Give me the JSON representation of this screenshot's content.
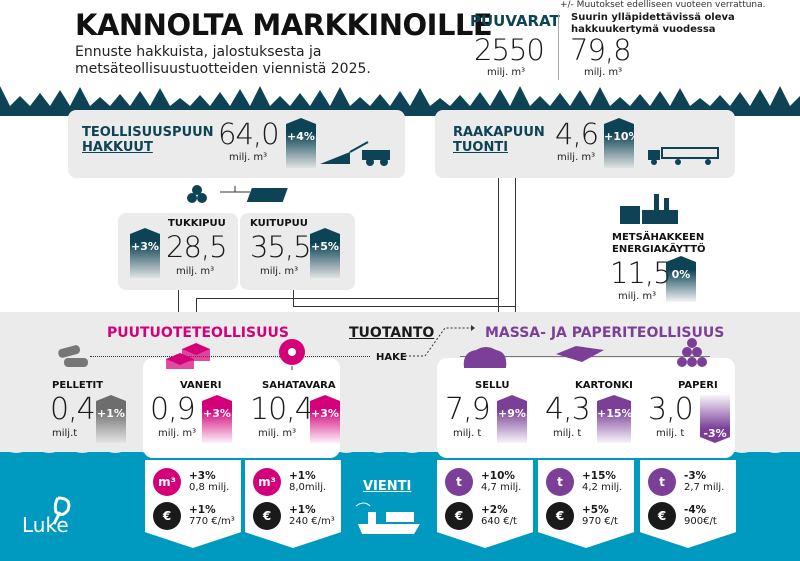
{
  "header": {
    "title": "KANNOLTA MARKKINOILLE",
    "subtitle": "Ennuste hakkuista, jalostuksesta ja metsäteollisuustuotteiden viennistä 2025.",
    "note": "+/- Muutokset edelliseen vuoteen verrattuna."
  },
  "puuvarat": {
    "label": "PUUVARAT",
    "value": "2550",
    "unit": "milj. m³"
  },
  "hakkuukertyma": {
    "label": "Suurin ylläpidettävissä oleva hakkuukertymä vuodessa",
    "value": "79,8",
    "unit": "milj. m³"
  },
  "hakkuut": {
    "label1": "TEOLLISUUSPUUN",
    "label2": "HAKKUUT",
    "value": "64,0",
    "unit": "milj. m³",
    "change": "+4%"
  },
  "tuonti": {
    "label1": "RAAKAPUUN",
    "label2": "TUONTI",
    "value": "4,6",
    "unit": "milj. m³",
    "change": "+10%"
  },
  "tukkipuu": {
    "label": "TUKKIPUU",
    "value": "28,5",
    "unit": "milj. m³",
    "change": "+3%"
  },
  "kuitupuu": {
    "label": "KUITUPUU",
    "value": "35,5",
    "unit": "milj. m³",
    "change": "+5%"
  },
  "energia": {
    "label1": "METSÄHAKKEEN",
    "label2": "ENERGIAKÄYTTÖ",
    "value": "11,5",
    "unit": "milj. m³",
    "change": "0%"
  },
  "sections": {
    "puutuote": "PUUTUOTETEOLLISUUS",
    "tuotanto": "TUOTANTO",
    "massa": "MASSA- JA PAPERITEOLLISUUS",
    "hake": "HAKE",
    "vienti": "VIENTI"
  },
  "products": [
    {
      "label": "PELLETIT",
      "value": "0,4",
      "unit": "milj.t",
      "change": "+1%"
    },
    {
      "label": "VANERI",
      "value": "0,9",
      "unit": "milj. m³",
      "change": "+3%"
    },
    {
      "label": "SAHATAVARA",
      "value": "10,4",
      "unit": "milj. m³",
      "change": "+3%"
    },
    {
      "label": "SELLU",
      "value": "7,9",
      "unit": "milj. t",
      "change": "+9%"
    },
    {
      "label": "KARTONKI",
      "value": "4,3",
      "unit": "milj. t",
      "change": "+15%"
    },
    {
      "label": "PAPERI",
      "value": "3,0",
      "unit": "milj. t",
      "change": "-3%"
    }
  ],
  "exports": [
    {
      "vol_icon": "m³",
      "vol_change": "+3%",
      "volume": "0,8 milj.",
      "price_change": "+1%",
      "price": "770 €/m³"
    },
    {
      "vol_icon": "m³",
      "vol_change": "+1%",
      "volume": "8,0milj.",
      "price_change": "+1%",
      "price": "240 €/m³"
    },
    {
      "vol_icon": "t",
      "vol_change": "+10%",
      "volume": "4,7 milj.",
      "price_change": "+2%",
      "price": "640 €/t"
    },
    {
      "vol_icon": "t",
      "vol_change": "+15%",
      "volume": "4,2 milj.",
      "price_change": "+5%",
      "price": "970 €/t"
    },
    {
      "vol_icon": "t",
      "vol_change": "-3%",
      "volume": "2,7  milj.",
      "price_change": "-4%",
      "price": "900€/t"
    }
  ],
  "euro_icon": "€",
  "logo": "Luke",
  "colors": {
    "teal": "#0d4354",
    "magenta": "#d4007a",
    "purple": "#7b3f98",
    "blue": "#0099c0"
  }
}
